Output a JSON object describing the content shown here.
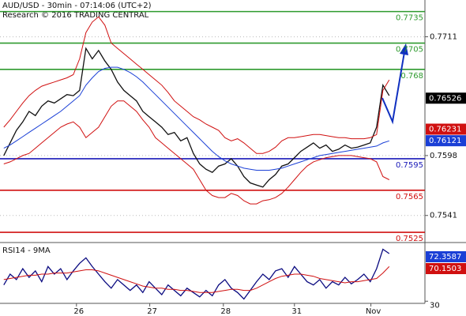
{
  "chart_data": [
    {
      "type": "line",
      "title": "AUD/USD - 30min - 07:14:06 (UTC+2)",
      "subtitle": "Research © 2016 TRADING CENTRAL",
      "xlim": [
        -0.6,
        66.65
      ],
      "xticks": [
        {
          "value": 11.5,
          "label": "26"
        },
        {
          "value": 23.1,
          "label": "27"
        },
        {
          "value": 34.75,
          "label": "28"
        },
        {
          "value": 46,
          "label": "31"
        },
        {
          "value": 58.1,
          "label": "Nov"
        }
      ],
      "ylim": [
        0.7516,
        0.7746
      ],
      "yticks": [
        0.7711,
        0.7598,
        0.7541
      ],
      "grid": true,
      "series": [
        {
          "color": "#111111",
          "values": [
            0.7598,
            0.761,
            0.7622,
            0.763,
            0.764,
            0.7636,
            0.7645,
            0.765,
            0.7648,
            0.7652,
            0.7656,
            0.7655,
            0.766,
            0.77,
            0.769,
            0.7698,
            0.7688,
            0.768,
            0.7668,
            0.766,
            0.7655,
            0.765,
            0.764,
            0.7635,
            0.763,
            0.7625,
            0.7618,
            0.762,
            0.7612,
            0.7615,
            0.76,
            0.759,
            0.7585,
            0.7582,
            0.7588,
            0.759,
            0.7595,
            0.7588,
            0.7578,
            0.7572,
            0.757,
            0.7568,
            0.7575,
            0.758,
            0.7588,
            0.759,
            0.7596,
            0.7602,
            0.7606,
            0.761,
            0.7605,
            0.7608,
            0.7602,
            0.7604,
            0.7608,
            0.7605,
            0.7606,
            0.7608,
            0.761,
            0.7625,
            0.7665,
            0.7655
          ]
        },
        {
          "color": "#1a3fd6",
          "values": [
            0.7605,
            0.7608,
            0.7612,
            0.7616,
            0.762,
            0.7624,
            0.7628,
            0.7632,
            0.7636,
            0.764,
            0.7645,
            0.765,
            0.7655,
            0.7665,
            0.7672,
            0.7678,
            0.7681,
            0.7682,
            0.7682,
            0.768,
            0.7677,
            0.7673,
            0.7668,
            0.7662,
            0.7656,
            0.765,
            0.7644,
            0.7638,
            0.7632,
            0.7626,
            0.762,
            0.7614,
            0.7608,
            0.7602,
            0.7597,
            0.7593,
            0.759,
            0.7588,
            0.7586,
            0.7585,
            0.7584,
            0.7584,
            0.7584,
            0.7585,
            0.7586,
            0.7588,
            0.759,
            0.7592,
            0.7594,
            0.7596,
            0.7598,
            0.7599,
            0.76,
            0.7601,
            0.7602,
            0.7603,
            0.7604,
            0.7605,
            0.7606,
            0.7607,
            0.761,
            0.7612
          ]
        },
        {
          "color": "#d01010",
          "values": [
            0.7625,
            0.7632,
            0.764,
            0.7648,
            0.7655,
            0.766,
            0.7664,
            0.7666,
            0.7668,
            0.767,
            0.7672,
            0.7675,
            0.769,
            0.7715,
            0.7725,
            0.773,
            0.7722,
            0.7705,
            0.77,
            0.7695,
            0.769,
            0.7685,
            0.768,
            0.7675,
            0.767,
            0.7665,
            0.7658,
            0.765,
            0.7645,
            0.764,
            0.7635,
            0.7632,
            0.7628,
            0.7625,
            0.7622,
            0.7615,
            0.7612,
            0.7614,
            0.761,
            0.7605,
            0.76,
            0.76,
            0.7602,
            0.7606,
            0.7612,
            0.7615,
            0.7615,
            0.7616,
            0.7617,
            0.7618,
            0.7618,
            0.7617,
            0.7616,
            0.7615,
            0.7615,
            0.7614,
            0.7614,
            0.7614,
            0.7615,
            0.7618,
            0.766,
            0.767
          ]
        },
        {
          "color": "#d01010",
          "values": [
            0.759,
            0.7592,
            0.7595,
            0.7598,
            0.76,
            0.7605,
            0.761,
            0.7615,
            0.762,
            0.7625,
            0.7628,
            0.763,
            0.7625,
            0.7615,
            0.762,
            0.7625,
            0.7635,
            0.7645,
            0.765,
            0.765,
            0.7645,
            0.764,
            0.7632,
            0.7625,
            0.7615,
            0.761,
            0.7605,
            0.76,
            0.7595,
            0.759,
            0.7585,
            0.7575,
            0.7565,
            0.756,
            0.7558,
            0.7558,
            0.7562,
            0.756,
            0.7555,
            0.7552,
            0.7552,
            0.7555,
            0.7556,
            0.7558,
            0.7562,
            0.7568,
            0.7575,
            0.7582,
            0.7588,
            0.7592,
            0.7594,
            0.7596,
            0.7597,
            0.7598,
            0.7598,
            0.7598,
            0.7597,
            0.7596,
            0.7595,
            0.7592,
            0.7578,
            0.7575
          ]
        }
      ],
      "levels": [
        {
          "value": 0.7735,
          "color": "#2e9a2e"
        },
        {
          "value": 0.7705,
          "color": "#2e9a2e"
        },
        {
          "value": 0.768,
          "color": "#2e9a2e"
        },
        {
          "value": 0.7595,
          "color": "#1a1ab8"
        },
        {
          "value": 0.7565,
          "color": "#d01010"
        },
        {
          "value": 0.7525,
          "color": "#d01010"
        }
      ],
      "markers": [
        {
          "value": 0.76526,
          "color": "#000000"
        },
        {
          "value": 0.76231,
          "color": "#d01010"
        },
        {
          "value": 0.76121,
          "color": "#1a3fd6"
        }
      ]
    },
    {
      "type": "line",
      "title": "RSI14 - 9MA",
      "xlim": [
        -0.6,
        66.65
      ],
      "ylim": [
        28,
        82
      ],
      "yticks": [
        30
      ],
      "series": [
        {
          "color": "#0a0a80",
          "values": [
            45,
            55,
            50,
            60,
            52,
            58,
            48,
            62,
            55,
            60,
            50,
            58,
            65,
            70,
            62,
            55,
            48,
            42,
            50,
            45,
            40,
            45,
            38,
            48,
            42,
            36,
            45,
            40,
            35,
            42,
            38,
            34,
            40,
            35,
            45,
            50,
            42,
            38,
            32,
            40,
            48,
            55,
            50,
            58,
            60,
            52,
            62,
            55,
            48,
            45,
            50,
            42,
            48,
            45,
            52,
            46,
            50,
            55,
            48,
            60,
            78,
            74
          ]
        },
        {
          "color": "#d01010",
          "values": [
            50,
            51,
            52,
            53,
            54,
            54,
            55,
            55,
            56,
            56,
            56,
            57,
            58,
            59,
            59,
            58,
            56,
            54,
            52,
            50,
            48,
            46,
            44,
            43,
            42,
            42,
            41,
            41,
            40,
            40,
            39,
            38,
            38,
            38,
            39,
            40,
            41,
            41,
            40,
            40,
            42,
            45,
            48,
            51,
            53,
            54,
            55,
            55,
            54,
            53,
            51,
            50,
            49,
            48,
            47,
            48,
            48,
            49,
            50,
            51,
            56,
            62
          ]
        }
      ],
      "markers": [
        {
          "value": 72.3587,
          "color": "#1a3fd6"
        },
        {
          "value": 70.1503,
          "color": "#d01010"
        }
      ]
    }
  ]
}
